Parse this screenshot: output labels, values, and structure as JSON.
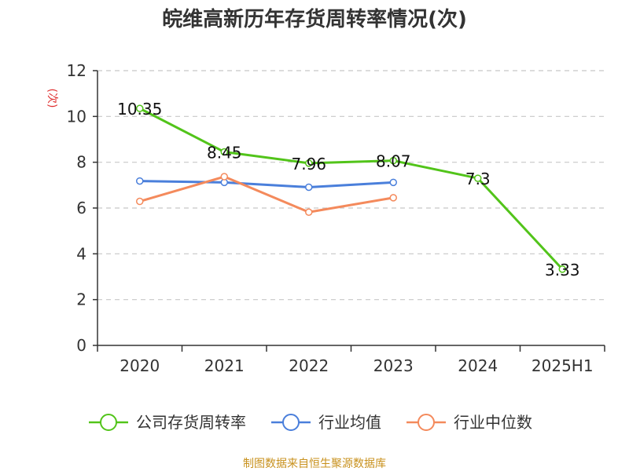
{
  "chart_data": {
    "type": "line",
    "title": "皖维高新历年存货周转率情况(次)",
    "ylabel": "(次)",
    "xlabel": "",
    "categories": [
      "2020",
      "2021",
      "2022",
      "2023",
      "2024",
      "2025H1"
    ],
    "ylim": [
      0,
      12
    ],
    "yticks": [
      0,
      2,
      4,
      6,
      8,
      10,
      12
    ],
    "grid": true,
    "legend_position": "bottom",
    "series": [
      {
        "name": "公司存货周转率",
        "color": "#52c41a",
        "values": [
          10.35,
          8.45,
          7.96,
          8.07,
          7.3,
          3.33
        ],
        "labels": [
          "10.35",
          "8.45",
          "7.96",
          "8.07",
          "7.3",
          "3.33"
        ],
        "show_labels": true
      },
      {
        "name": "行业均值",
        "color": "#4a7fdb",
        "values": [
          7.18,
          7.12,
          6.91,
          7.12,
          null,
          null
        ],
        "show_labels": false
      },
      {
        "name": "行业中位数",
        "color": "#f48a5c",
        "values": [
          6.29,
          7.37,
          5.82,
          6.45,
          null,
          null
        ],
        "show_labels": false
      }
    ]
  },
  "source_text": "制图数据来自恒生聚源数据库"
}
